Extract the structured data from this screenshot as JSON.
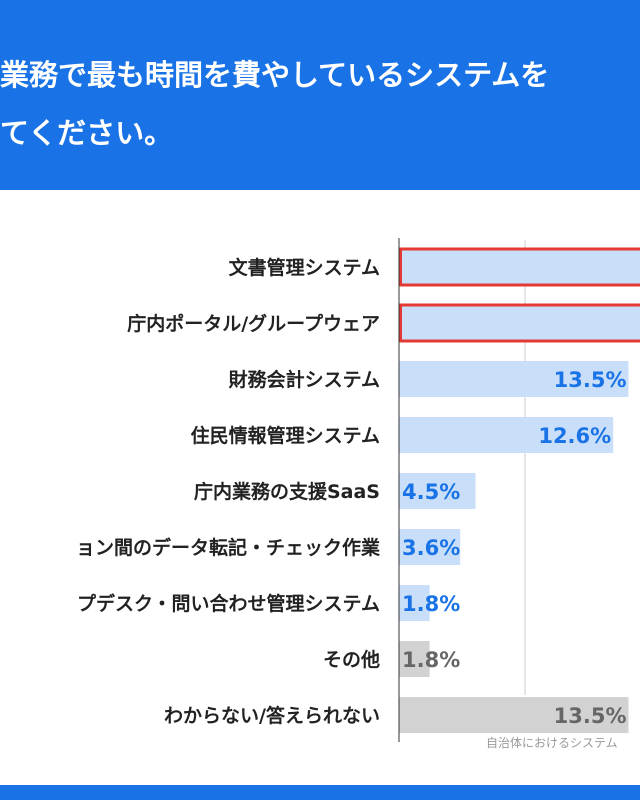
{
  "title": {
    "line1": "業務で最も時間を費やしているシステムを",
    "line2": "てください。"
  },
  "source": "自治体におけるシステム",
  "colors": {
    "header": "#1a73e6",
    "bar": "#c9def9",
    "bar_other": "#d2d2d2",
    "highlight_border": "#e53935",
    "value_blue": "#1a73e6",
    "value_gray": "#666666"
  },
  "chart_data": {
    "type": "bar",
    "orientation": "horizontal",
    "categories": [
      "文書管理システム",
      "庁内ポータル/グループウェア",
      "財務会計システム",
      "住民情報管理システム",
      "庁内業務の支援SaaS",
      "ョン間のデータ転記・チェック作業",
      "プデスク・問い合わせ管理システム",
      "その他",
      "わからない/答えられない"
    ],
    "values": [
      null,
      null,
      13.5,
      12.6,
      4.5,
      3.6,
      1.8,
      1.8,
      13.5
    ],
    "value_labels": [
      "",
      "",
      "13.5%",
      "12.6%",
      "4.5%",
      "3.6%",
      "1.8%",
      "1.8%",
      "13.5%"
    ],
    "highlighted": [
      true,
      true,
      false,
      false,
      false,
      false,
      false,
      false,
      false
    ],
    "gray": [
      false,
      false,
      false,
      false,
      false,
      false,
      false,
      true,
      true
    ],
    "unit": "%",
    "grid": true
  }
}
